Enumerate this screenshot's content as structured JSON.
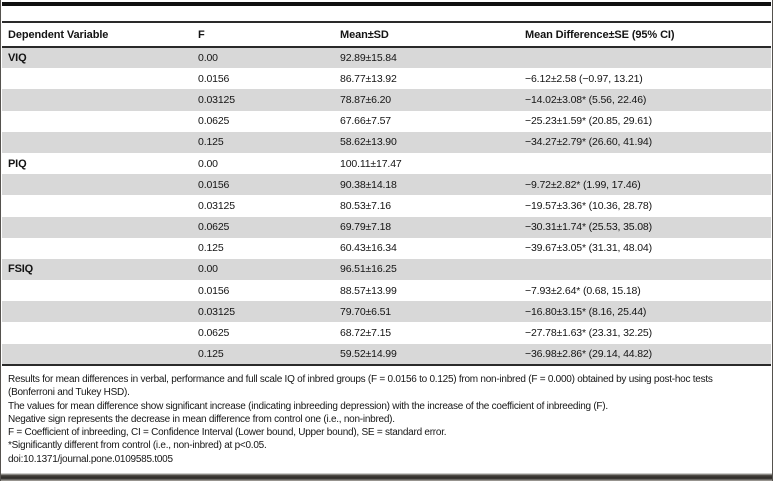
{
  "colors": {
    "row_shade": "#d8d8d8",
    "rule": "#2a2a2a",
    "text": "#141414"
  },
  "table": {
    "columns": [
      "Dependent Variable",
      "F",
      "Mean±SD",
      "Mean Difference±SE (95% CI)"
    ],
    "rows": [
      {
        "dependent_variable": "VIQ",
        "f": "0.00",
        "mean_sd": "92.89±15.84",
        "mean_difference": ""
      },
      {
        "dependent_variable": "",
        "f": "0.0156",
        "mean_sd": "86.77±13.92",
        "mean_difference": "−6.12±2.58 (−0.97, 13.21)"
      },
      {
        "dependent_variable": "",
        "f": "0.03125",
        "mean_sd": "78.87±6.20",
        "mean_difference": "−14.02±3.08* (5.56, 22.46)"
      },
      {
        "dependent_variable": "",
        "f": "0.0625",
        "mean_sd": "67.66±7.57",
        "mean_difference": "−25.23±1.59* (20.85, 29.61)"
      },
      {
        "dependent_variable": "",
        "f": "0.125",
        "mean_sd": "58.62±13.90",
        "mean_difference": "−34.27±2.79* (26.60, 41.94)"
      },
      {
        "dependent_variable": "PIQ",
        "f": "0.00",
        "mean_sd": "100.11±17.47",
        "mean_difference": ""
      },
      {
        "dependent_variable": "",
        "f": "0.0156",
        "mean_sd": "90.38±14.18",
        "mean_difference": "−9.72±2.82* (1.99, 17.46)"
      },
      {
        "dependent_variable": "",
        "f": "0.03125",
        "mean_sd": "80.53±7.16",
        "mean_difference": "−19.57±3.36* (10.36, 28.78)"
      },
      {
        "dependent_variable": "",
        "f": "0.0625",
        "mean_sd": "69.79±7.18",
        "mean_difference": "−30.31±1.74* (25.53, 35.08)"
      },
      {
        "dependent_variable": "",
        "f": "0.125",
        "mean_sd": "60.43±16.34",
        "mean_difference": "−39.67±3.05* (31.31, 48.04)"
      },
      {
        "dependent_variable": "FSIQ",
        "f": "0.00",
        "mean_sd": "96.51±16.25",
        "mean_difference": ""
      },
      {
        "dependent_variable": "",
        "f": "0.0156",
        "mean_sd": "88.57±13.99",
        "mean_difference": "−7.93±2.64* (0.68, 15.18)"
      },
      {
        "dependent_variable": "",
        "f": "0.03125",
        "mean_sd": "79.70±6.51",
        "mean_difference": "−16.80±3.15* (8.16, 25.44)"
      },
      {
        "dependent_variable": "",
        "f": "0.0625",
        "mean_sd": "68.72±7.15",
        "mean_difference": "−27.78±1.63* (23.31, 32.25)"
      },
      {
        "dependent_variable": "",
        "f": "0.125",
        "mean_sd": "59.52±14.99",
        "mean_difference": "−36.98±2.86* (29.14, 44.82)"
      }
    ]
  },
  "footnotes": {
    "lines": [
      "Results for mean differences in verbal, performance and full scale IQ of inbred groups (F = 0.0156 to 0.125) from non-inbred (F = 0.000) obtained by using post-hoc tests",
      "(Bonferroni and Tukey HSD).",
      "The values for mean difference show significant increase (indicating inbreeding depression) with the increase of the coefficient of inbreeding (F).",
      "Negative sign represents the decrease in mean difference from control one (i.e., non-inbred).",
      "F = Coefficient of inbreeding, CI = Confidence Interval (Lower bound, Upper bound), SE = standard error.",
      "*Significantly different from control (i.e., non-inbred) at p<0.05.",
      "doi:10.1371/journal.pone.0109585.t005"
    ]
  }
}
